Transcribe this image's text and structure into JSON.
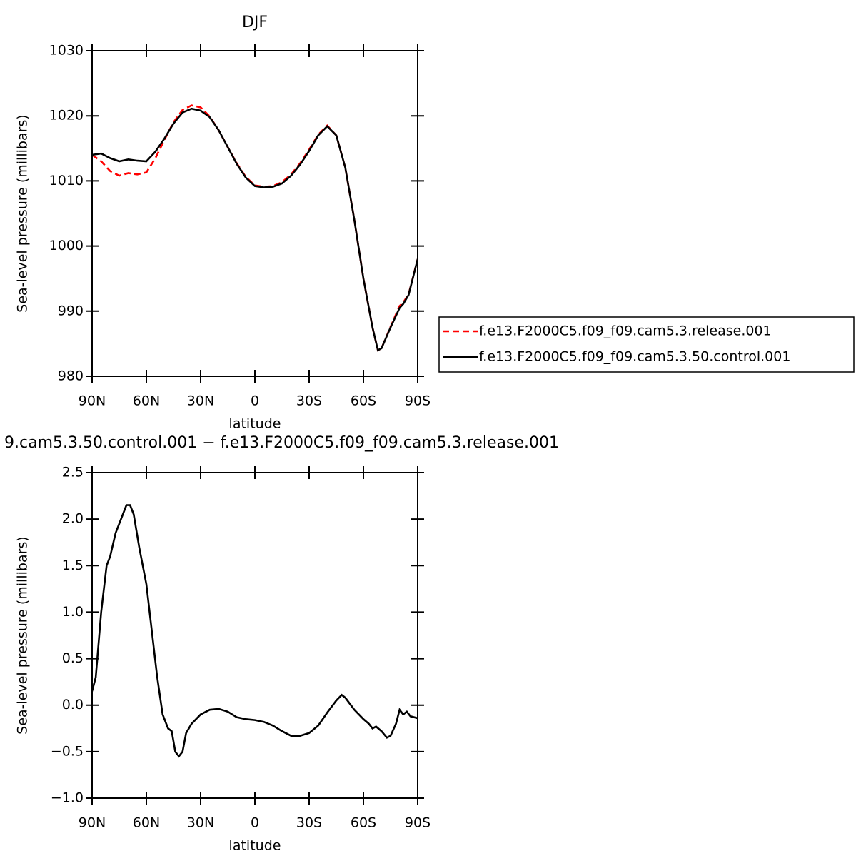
{
  "chart_data": [
    {
      "type": "line",
      "title": "DJF",
      "xlabel": "latitude",
      "ylabel": "Sea-level pressure (millibars)",
      "x": [
        90,
        85,
        80,
        75,
        70,
        65,
        60,
        55,
        50,
        45,
        40,
        35,
        30,
        25,
        20,
        15,
        10,
        5,
        0,
        -5,
        -10,
        -15,
        -20,
        -25,
        -30,
        -35,
        -40,
        -45,
        -50,
        -55,
        -60,
        -65,
        -68,
        -70,
        -75,
        -80,
        -82,
        -85,
        -90
      ],
      "series": [
        {
          "name": "f.e13.F2000C5.f09_f09.cam5.3.release.001",
          "color": "#ff0000",
          "dash": true,
          "values": [
            1014,
            1013,
            1011.5,
            1010.8,
            1011.2,
            1011,
            1011.3,
            1013.5,
            1016.3,
            1019,
            1020.9,
            1021.6,
            1021.3,
            1019.9,
            1017.8,
            1015.2,
            1012.7,
            1010.6,
            1009.3,
            1009.1,
            1009.2,
            1009.8,
            1011,
            1012.7,
            1014.8,
            1017.1,
            1018.5,
            1017,
            1012,
            1004,
            995,
            987.5,
            984,
            984.3,
            987.6,
            990.8,
            991.3,
            992.6,
            998
          ]
        },
        {
          "name": "f.e13.F2000C5.f09_f09.cam5.3.50.control.001",
          "color": "#000000",
          "dash": false,
          "values": [
            1014,
            1014.2,
            1013.5,
            1013,
            1013.3,
            1013.1,
            1013,
            1014.5,
            1016.5,
            1018.8,
            1020.5,
            1021.1,
            1020.8,
            1019.8,
            1017.8,
            1015.2,
            1012.6,
            1010.5,
            1009.2,
            1009,
            1009.1,
            1009.6,
            1010.8,
            1012.5,
            1014.6,
            1017,
            1018.4,
            1017,
            1012,
            1004,
            995,
            987.5,
            984,
            984.3,
            987.5,
            990.5,
            991.1,
            992.5,
            998
          ]
        }
      ],
      "xlim": [
        90,
        -90
      ],
      "xticks": [
        {
          "value": 90,
          "label": "90N"
        },
        {
          "value": 60,
          "label": "60N"
        },
        {
          "value": 30,
          "label": "30N"
        },
        0,
        {
          "value": -30,
          "label": "30S"
        },
        {
          "value": -60,
          "label": "60S"
        },
        {
          "value": -90,
          "label": "90S"
        }
      ],
      "ylim": [
        980,
        1030
      ],
      "yticks": [
        980,
        990,
        1000,
        1010,
        1020,
        1030
      ],
      "legend": "right"
    },
    {
      "type": "line",
      "title": "9.cam5.3.50.control.001 − f.e13.F2000C5.f09_f09.cam5.3.release.001",
      "xlabel": "latitude",
      "ylabel": "Sea-level pressure (millibars)",
      "x": [
        90,
        88,
        85,
        82,
        80,
        77,
        74,
        71,
        69,
        67,
        64,
        60,
        57,
        54,
        51,
        48,
        46,
        44,
        42,
        40,
        38,
        35,
        30,
        25,
        20,
        15,
        10,
        5,
        0,
        -5,
        -10,
        -15,
        -20,
        -25,
        -30,
        -35,
        -40,
        -45,
        -48,
        -50,
        -55,
        -60,
        -63,
        -65,
        -67,
        -70,
        -73,
        -75,
        -78,
        -80,
        -82,
        -84,
        -86,
        -90
      ],
      "series": [
        {
          "color": "#000000",
          "dash": false,
          "values": [
            0.15,
            0.3,
            1.0,
            1.5,
            1.6,
            1.85,
            2.0,
            2.15,
            2.15,
            2.05,
            1.7,
            1.3,
            0.8,
            0.3,
            -0.1,
            -0.25,
            -0.28,
            -0.5,
            -0.55,
            -0.5,
            -0.3,
            -0.2,
            -0.1,
            -0.05,
            -0.04,
            -0.07,
            -0.13,
            -0.15,
            -0.16,
            -0.18,
            -0.22,
            -0.28,
            -0.33,
            -0.33,
            -0.3,
            -0.22,
            -0.08,
            0.05,
            0.11,
            0.08,
            -0.05,
            -0.15,
            -0.2,
            -0.25,
            -0.23,
            -0.28,
            -0.35,
            -0.33,
            -0.2,
            -0.05,
            -0.1,
            -0.07,
            -0.12,
            -0.14
          ]
        }
      ],
      "xlim": [
        90,
        -90
      ],
      "xticks": [
        {
          "value": 90,
          "label": "90N"
        },
        {
          "value": 60,
          "label": "60N"
        },
        {
          "value": 30,
          "label": "30N"
        },
        0,
        {
          "value": -30,
          "label": "30S"
        },
        {
          "value": -60,
          "label": "60S"
        },
        {
          "value": -90,
          "label": "90S"
        }
      ],
      "ylim": [
        -1.0,
        2.5
      ],
      "yticks": [
        {
          "value": -1.0,
          "label": "−1.0"
        },
        {
          "value": -0.5,
          "label": "−0.5"
        },
        {
          "value": 0,
          "label": "0.0"
        },
        0.5,
        {
          "value": 1,
          "label": "1.0"
        },
        1.5,
        {
          "value": 2,
          "label": "2.0"
        },
        2.5
      ]
    }
  ]
}
